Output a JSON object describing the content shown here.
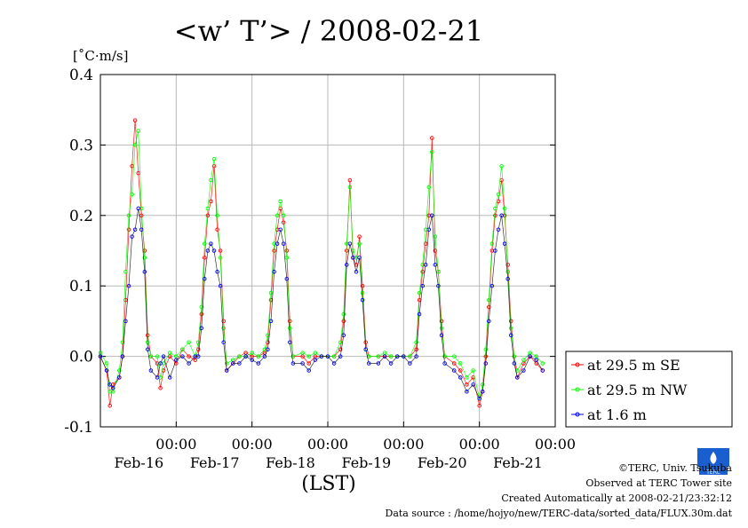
{
  "chart_data": {
    "type": "line",
    "title": "<w’ T’> / 2008-02-21",
    "unit": "[˚C·m/s]",
    "xlabel": "(LST)",
    "ylim": [
      -0.1,
      0.4
    ],
    "xlim": [
      0,
      144
    ],
    "yticks": [
      {
        "v": 0.4,
        "label": "0.4"
      },
      {
        "v": 0.3,
        "label": "0.3"
      },
      {
        "v": 0.2,
        "label": "0.2"
      },
      {
        "v": 0.1,
        "label": "0.1"
      },
      {
        "v": 0.0,
        "label": "0.0"
      },
      {
        "v": -0.1,
        "label": "-0.1"
      }
    ],
    "xticks": [
      {
        "h": 24,
        "time": "00:00",
        "date": "Feb-16"
      },
      {
        "h": 48,
        "time": "00:00",
        "date": "Feb-17"
      },
      {
        "h": 72,
        "time": "00:00",
        "date": "Feb-18"
      },
      {
        "h": 96,
        "time": "00:00",
        "date": "Feb-19"
      },
      {
        "h": 120,
        "time": "00:00",
        "date": "Feb-20"
      },
      {
        "h": 144,
        "time": "00:00",
        "date": "Feb-21"
      }
    ],
    "grid": true,
    "legend_position": "right",
    "series": [
      {
        "name": "at 29.5 m SE",
        "color": "#ff0000",
        "points": [
          [
            0,
            0.0
          ],
          [
            2,
            -0.02
          ],
          [
            3,
            -0.07
          ],
          [
            4,
            -0.04
          ],
          [
            6,
            -0.03
          ],
          [
            7,
            0.0
          ],
          [
            8,
            0.08
          ],
          [
            9,
            0.18
          ],
          [
            10,
            0.27
          ],
          [
            11,
            0.335
          ],
          [
            12,
            0.26
          ],
          [
            13,
            0.2
          ],
          [
            14,
            0.15
          ],
          [
            15,
            0.03
          ],
          [
            16,
            0.0
          ],
          [
            18,
            -0.01
          ],
          [
            19,
            -0.045
          ],
          [
            20,
            -0.02
          ],
          [
            22,
            0.0
          ],
          [
            24,
            -0.01
          ],
          [
            26,
            0.01
          ],
          [
            28,
            0.0
          ],
          [
            30,
            -0.005
          ],
          [
            31,
            0.01
          ],
          [
            32,
            0.06
          ],
          [
            33,
            0.14
          ],
          [
            34,
            0.2
          ],
          [
            35,
            0.22
          ],
          [
            36,
            0.27
          ],
          [
            37,
            0.18
          ],
          [
            38,
            0.15
          ],
          [
            39,
            0.05
          ],
          [
            40,
            -0.02
          ],
          [
            42,
            -0.01
          ],
          [
            44,
            0.0
          ],
          [
            46,
            0.005
          ],
          [
            48,
            0.0
          ],
          [
            50,
            0.0
          ],
          [
            52,
            0.005
          ],
          [
            53,
            0.02
          ],
          [
            54,
            0.08
          ],
          [
            55,
            0.15
          ],
          [
            56,
            0.18
          ],
          [
            57,
            0.21
          ],
          [
            58,
            0.19
          ],
          [
            59,
            0.15
          ],
          [
            60,
            0.05
          ],
          [
            61,
            0.0
          ],
          [
            64,
            0.0
          ],
          [
            66,
            -0.01
          ],
          [
            68,
            0.0
          ],
          [
            70,
            0.0
          ],
          [
            72,
            0.0
          ],
          [
            74,
            0.0
          ],
          [
            76,
            0.01
          ],
          [
            77,
            0.05
          ],
          [
            78,
            0.15
          ],
          [
            79,
            0.25
          ],
          [
            80,
            0.14
          ],
          [
            81,
            0.13
          ],
          [
            82,
            0.17
          ],
          [
            83,
            0.1
          ],
          [
            84,
            0.02
          ],
          [
            85,
            0.0
          ],
          [
            88,
            0.0
          ],
          [
            90,
            0.0
          ],
          [
            92,
            0.0
          ],
          [
            94,
            0.0
          ],
          [
            96,
            0.0
          ],
          [
            98,
            0.0
          ],
          [
            100,
            0.01
          ],
          [
            101,
            0.08
          ],
          [
            102,
            0.12
          ],
          [
            103,
            0.16
          ],
          [
            104,
            0.2
          ],
          [
            105,
            0.31
          ],
          [
            106,
            0.15
          ],
          [
            107,
            0.12
          ],
          [
            108,
            0.05
          ],
          [
            109,
            0.0
          ],
          [
            112,
            -0.01
          ],
          [
            114,
            -0.02
          ],
          [
            116,
            -0.04
          ],
          [
            118,
            -0.03
          ],
          [
            120,
            -0.07
          ],
          [
            121,
            -0.05
          ],
          [
            122,
            0.0
          ],
          [
            123,
            0.07
          ],
          [
            124,
            0.15
          ],
          [
            125,
            0.2
          ],
          [
            126,
            0.22
          ],
          [
            127,
            0.25
          ],
          [
            128,
            0.2
          ],
          [
            129,
            0.13
          ],
          [
            130,
            0.05
          ],
          [
            131,
            0.0
          ],
          [
            132,
            -0.03
          ],
          [
            134,
            -0.01
          ],
          [
            136,
            0.0
          ],
          [
            138,
            -0.01
          ],
          [
            140,
            -0.02
          ]
        ]
      },
      {
        "name": "at 29.5 m NW",
        "color": "#00ff00",
        "points": [
          [
            0,
            0.005
          ],
          [
            2,
            -0.01
          ],
          [
            3,
            -0.05
          ],
          [
            4,
            -0.05
          ],
          [
            6,
            -0.02
          ],
          [
            7,
            0.02
          ],
          [
            8,
            0.12
          ],
          [
            9,
            0.2
          ],
          [
            10,
            0.23
          ],
          [
            11,
            0.3
          ],
          [
            12,
            0.32
          ],
          [
            13,
            0.21
          ],
          [
            14,
            0.14
          ],
          [
            15,
            0.02
          ],
          [
            16,
            0.0
          ],
          [
            18,
            0.0
          ],
          [
            19,
            -0.03
          ],
          [
            20,
            -0.01
          ],
          [
            22,
            0.005
          ],
          [
            24,
            0.0
          ],
          [
            26,
            0.01
          ],
          [
            28,
            0.02
          ],
          [
            30,
            0.0
          ],
          [
            31,
            0.02
          ],
          [
            32,
            0.07
          ],
          [
            33,
            0.16
          ],
          [
            34,
            0.21
          ],
          [
            35,
            0.25
          ],
          [
            36,
            0.28
          ],
          [
            37,
            0.2
          ],
          [
            38,
            0.14
          ],
          [
            39,
            0.04
          ],
          [
            40,
            -0.01
          ],
          [
            42,
            -0.005
          ],
          [
            44,
            0.0
          ],
          [
            46,
            0.0
          ],
          [
            48,
            0.005
          ],
          [
            50,
            0.0
          ],
          [
            52,
            0.01
          ],
          [
            53,
            0.03
          ],
          [
            54,
            0.09
          ],
          [
            55,
            0.16
          ],
          [
            56,
            0.2
          ],
          [
            57,
            0.22
          ],
          [
            58,
            0.2
          ],
          [
            59,
            0.14
          ],
          [
            60,
            0.04
          ],
          [
            61,
            0.0
          ],
          [
            64,
            0.005
          ],
          [
            66,
            0.0
          ],
          [
            68,
            0.005
          ],
          [
            70,
            0.0
          ],
          [
            72,
            0.0
          ],
          [
            74,
            0.0
          ],
          [
            76,
            0.02
          ],
          [
            77,
            0.06
          ],
          [
            78,
            0.16
          ],
          [
            79,
            0.24
          ],
          [
            80,
            0.15
          ],
          [
            81,
            0.14
          ],
          [
            82,
            0.16
          ],
          [
            83,
            0.09
          ],
          [
            84,
            0.01
          ],
          [
            85,
            0.0
          ],
          [
            88,
            0.0
          ],
          [
            90,
            0.005
          ],
          [
            92,
            0.0
          ],
          [
            94,
            0.0
          ],
          [
            96,
            0.0
          ],
          [
            98,
            0.0
          ],
          [
            100,
            0.02
          ],
          [
            101,
            0.09
          ],
          [
            102,
            0.13
          ],
          [
            103,
            0.18
          ],
          [
            104,
            0.24
          ],
          [
            105,
            0.29
          ],
          [
            106,
            0.17
          ],
          [
            107,
            0.12
          ],
          [
            108,
            0.04
          ],
          [
            109,
            0.0
          ],
          [
            112,
            0.0
          ],
          [
            114,
            -0.01
          ],
          [
            116,
            -0.03
          ],
          [
            118,
            -0.02
          ],
          [
            120,
            -0.06
          ],
          [
            121,
            -0.04
          ],
          [
            122,
            0.01
          ],
          [
            123,
            0.08
          ],
          [
            124,
            0.16
          ],
          [
            125,
            0.21
          ],
          [
            126,
            0.23
          ],
          [
            127,
            0.27
          ],
          [
            128,
            0.21
          ],
          [
            129,
            0.12
          ],
          [
            130,
            0.04
          ],
          [
            131,
            0.0
          ],
          [
            132,
            -0.02
          ],
          [
            134,
            -0.005
          ],
          [
            136,
            0.005
          ],
          [
            138,
            0.0
          ],
          [
            140,
            -0.01
          ]
        ]
      },
      {
        "name": "at 1.6 m",
        "color": "#0000ff",
        "points": [
          [
            0,
            0.0
          ],
          [
            2,
            -0.02
          ],
          [
            3,
            -0.04
          ],
          [
            4,
            -0.045
          ],
          [
            6,
            -0.03
          ],
          [
            7,
            0.0
          ],
          [
            8,
            0.05
          ],
          [
            9,
            0.1
          ],
          [
            10,
            0.17
          ],
          [
            11,
            0.18
          ],
          [
            12,
            0.21
          ],
          [
            13,
            0.18
          ],
          [
            14,
            0.12
          ],
          [
            15,
            0.01
          ],
          [
            16,
            -0.02
          ],
          [
            18,
            -0.03
          ],
          [
            19,
            -0.01
          ],
          [
            20,
            0.0
          ],
          [
            22,
            -0.03
          ],
          [
            24,
            -0.005
          ],
          [
            26,
            0.0
          ],
          [
            28,
            -0.01
          ],
          [
            30,
            0.0
          ],
          [
            31,
            0.0
          ],
          [
            32,
            0.04
          ],
          [
            33,
            0.11
          ],
          [
            34,
            0.15
          ],
          [
            35,
            0.16
          ],
          [
            36,
            0.15
          ],
          [
            37,
            0.12
          ],
          [
            38,
            0.1
          ],
          [
            39,
            0.02
          ],
          [
            40,
            -0.02
          ],
          [
            42,
            -0.01
          ],
          [
            44,
            -0.01
          ],
          [
            46,
            0.0
          ],
          [
            48,
            -0.005
          ],
          [
            50,
            -0.01
          ],
          [
            52,
            0.0
          ],
          [
            53,
            0.01
          ],
          [
            54,
            0.05
          ],
          [
            55,
            0.12
          ],
          [
            56,
            0.16
          ],
          [
            57,
            0.18
          ],
          [
            58,
            0.16
          ],
          [
            59,
            0.11
          ],
          [
            60,
            0.02
          ],
          [
            61,
            -0.01
          ],
          [
            64,
            -0.01
          ],
          [
            66,
            -0.02
          ],
          [
            68,
            -0.005
          ],
          [
            70,
            0.0
          ],
          [
            72,
            0.0
          ],
          [
            74,
            -0.01
          ],
          [
            76,
            0.0
          ],
          [
            77,
            0.03
          ],
          [
            78,
            0.13
          ],
          [
            79,
            0.16
          ],
          [
            80,
            0.14
          ],
          [
            81,
            0.12
          ],
          [
            82,
            0.14
          ],
          [
            83,
            0.08
          ],
          [
            84,
            0.01
          ],
          [
            85,
            -0.01
          ],
          [
            88,
            -0.01
          ],
          [
            90,
            0.0
          ],
          [
            92,
            -0.01
          ],
          [
            94,
            0.0
          ],
          [
            96,
            0.0
          ],
          [
            98,
            -0.01
          ],
          [
            100,
            0.0
          ],
          [
            101,
            0.06
          ],
          [
            102,
            0.1
          ],
          [
            103,
            0.13
          ],
          [
            104,
            0.18
          ],
          [
            105,
            0.2
          ],
          [
            106,
            0.13
          ],
          [
            107,
            0.1
          ],
          [
            108,
            0.03
          ],
          [
            109,
            -0.01
          ],
          [
            112,
            -0.02
          ],
          [
            114,
            -0.03
          ],
          [
            116,
            -0.05
          ],
          [
            118,
            -0.04
          ],
          [
            120,
            -0.06
          ],
          [
            121,
            -0.05
          ],
          [
            122,
            -0.01
          ],
          [
            123,
            0.05
          ],
          [
            124,
            0.1
          ],
          [
            125,
            0.15
          ],
          [
            126,
            0.18
          ],
          [
            127,
            0.2
          ],
          [
            128,
            0.16
          ],
          [
            129,
            0.11
          ],
          [
            130,
            0.03
          ],
          [
            131,
            -0.01
          ],
          [
            132,
            -0.03
          ],
          [
            134,
            -0.02
          ],
          [
            136,
            0.0
          ],
          [
            138,
            -0.005
          ],
          [
            140,
            -0.02
          ]
        ]
      }
    ]
  },
  "footer": {
    "copyright": "©TERC, Univ. Tsukuba",
    "observed": "Observed at TERC Tower site",
    "created": "Created Automatically at 2008-02-21/23:32:12",
    "source": "Data source : /home/hojyo/new/TERC-data/sorted_data/FLUX.30m.dat"
  }
}
